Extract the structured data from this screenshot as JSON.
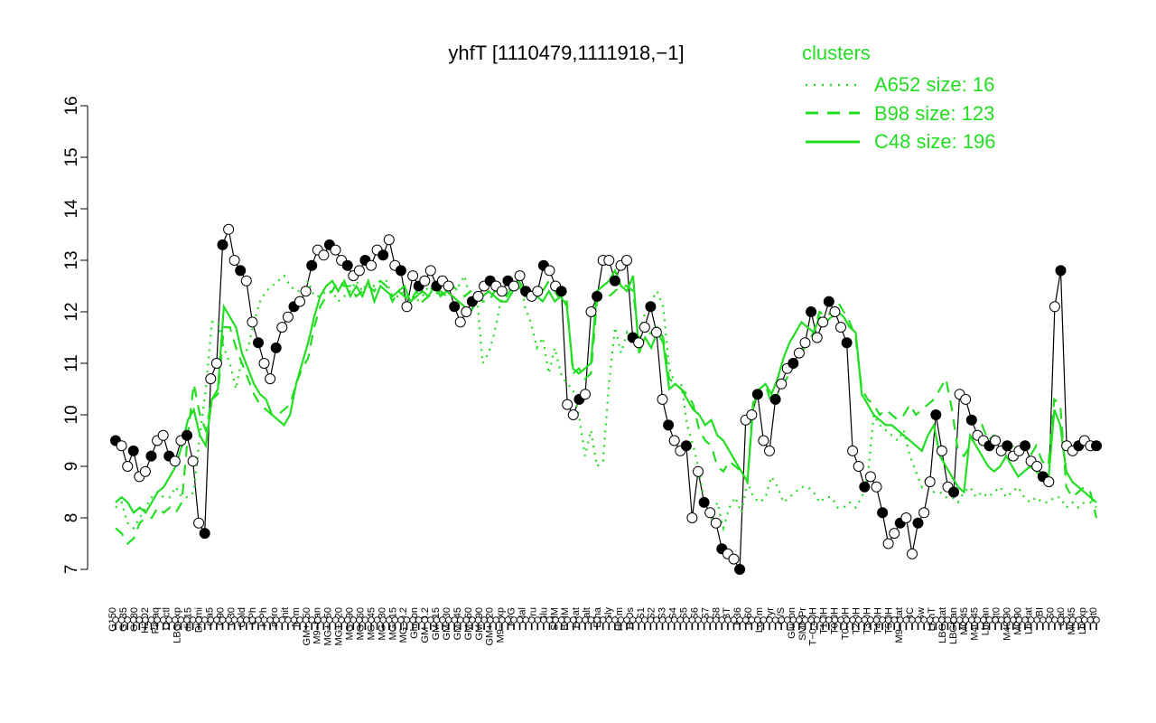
{
  "chart_data": {
    "type": "line",
    "title": "yhfT [1110479,1111918,−1]",
    "xlabel": "",
    "ylabel": "",
    "ylim": [
      7,
      16
    ],
    "yticks": [
      7,
      8,
      9,
      10,
      11,
      12,
      13,
      14,
      15,
      16
    ],
    "x_tick_labels": [
      "G150",
      "G135",
      "G180",
      "H2O2",
      "Paraq",
      "Oxctl",
      "LBGexp",
      "dia15",
      "Diami",
      "dia5",
      "C90",
      "C30",
      "Cold",
      "LPh",
      "HPh",
      "aero",
      "nit",
      "ferm",
      "GM+150",
      "M9−tran",
      "MG+150",
      "MG+120",
      "MG+90",
      "MG+60",
      "MG+45",
      "MG+30",
      "MG+15",
      "MG−0.2",
      "Glucon",
      "GM−0.2",
      "GM+15",
      "GM+30",
      "GM+45",
      "GM+60",
      "GM+90",
      "GM+120",
      "M9−exp",
      "M/G",
      "Mal",
      "Fru",
      "Glu",
      "SMM",
      "BMM",
      "Heat",
      "Salt",
      "Etha",
      "Gly",
      "HiTm",
      "HiOs",
      "S1",
      "S2",
      "S3",
      "S4",
      "S5",
      "S6",
      "S7",
      "S8",
      "BT",
      "B36",
      "B60",
      "LoTm",
      "Pyr",
      "G/S",
      "Glucon",
      "SMMPr",
      "T−0.40H",
      "T1.0H",
      "T0.0H",
      "T0.30H",
      "T2.0H",
      "T3.0H",
      "T4.0H",
      "T5.0H",
      "M9−stat",
      "BC",
      "Sw",
      "LPhT",
      "LBGstat",
      "LBGtran",
      "M0t45",
      "M40t45",
      "Lbtran",
      "Mt0",
      "M40t90",
      "M0t90",
      "Lbstat",
      "BI",
      "S0",
      "dia0",
      "M0t45",
      "Lbexp",
      "Mt0"
    ],
    "legend": {
      "title": "clusters",
      "placement": "top-right",
      "entries": [
        {
          "label": "A652 size: 16",
          "style": "dotted"
        },
        {
          "label": "B98 size: 123",
          "style": "dashed"
        },
        {
          "label": "C48 size: 196",
          "style": "solid"
        }
      ]
    },
    "series": [
      {
        "name": "yhfT",
        "style": "points+line",
        "color": "#000000",
        "values": [
          9.5,
          9.4,
          9.0,
          9.3,
          8.8,
          8.9,
          9.2,
          9.5,
          9.6,
          9.2,
          9.1,
          9.5,
          9.6,
          9.1,
          7.9,
          7.7,
          10.7,
          11.0,
          13.3,
          13.6,
          13.0,
          12.8,
          12.6,
          11.8,
          11.4,
          11.0,
          10.7,
          11.3,
          11.7,
          11.9,
          12.1,
          12.2,
          12.4,
          12.9,
          13.2,
          13.1,
          13.3,
          13.2,
          13.0,
          12.9,
          12.7,
          12.8,
          13.0,
          12.9,
          13.2,
          13.1,
          13.4,
          12.9,
          12.8,
          12.1,
          12.7,
          12.5,
          12.6,
          12.8,
          12.5,
          12.6,
          12.5,
          12.1,
          11.8,
          12.0,
          12.2,
          12.3,
          12.5,
          12.6,
          12.5,
          12.4,
          12.6,
          12.5,
          12.7,
          12.4,
          12.3,
          12.4,
          12.9,
          12.8,
          12.5,
          12.4,
          10.2,
          10.0,
          10.3,
          10.4,
          12.0,
          12.3,
          13.0,
          13.0,
          12.6,
          12.9,
          13.0,
          11.5,
          11.4,
          11.7,
          12.1,
          11.6,
          10.3,
          9.8,
          9.5,
          9.3,
          9.4,
          8.0,
          8.9,
          8.3,
          8.1,
          7.9,
          7.4,
          7.3,
          7.2,
          7.0,
          9.9,
          10.0,
          10.4,
          9.5,
          9.3,
          10.3,
          10.6,
          10.9,
          11.0,
          11.2,
          11.4,
          12.0,
          11.5,
          11.8,
          12.2,
          12.0,
          11.7,
          11.4,
          9.3,
          9.0,
          8.6,
          8.8,
          8.6,
          8.1,
          7.5,
          7.7,
          7.9,
          8.0,
          7.3,
          7.9,
          8.1,
          8.7,
          10.0,
          9.3,
          8.6,
          8.5,
          10.4,
          10.3,
          9.9,
          9.6,
          9.5,
          9.4,
          9.5,
          9.3,
          9.4,
          9.2,
          9.3,
          9.4,
          9.1,
          9.0,
          8.8,
          8.7,
          12.1,
          12.8,
          9.4,
          9.3,
          9.4,
          9.5,
          9.4,
          9.4
        ]
      },
      {
        "name": "A652",
        "style": "dotted",
        "color": "#22dd22",
        "values": [
          8.2,
          8.3,
          7.9,
          7.8,
          8.0,
          8.2,
          8.4,
          8.5,
          8.4,
          8.4,
          8.6,
          8.4,
          8.4,
          8.5,
          9.6,
          10.5,
          11.8,
          11.8,
          11.3,
          11.0,
          10.5,
          11.1,
          11.3,
          11.8,
          12.2,
          12.4,
          12.5,
          12.6,
          12.7,
          12.5,
          12.4,
          12.4,
          12.6,
          12.3,
          12.3,
          12.4,
          12.4,
          12.2,
          12.3,
          12.4,
          12.6,
          12.4,
          12.6,
          12.5,
          12.6,
          12.6,
          12.3,
          12.3,
          12.4,
          12.2,
          12.2,
          12.3,
          12.5,
          12.4,
          12.3,
          12.6,
          12.5,
          12.5,
          12.7,
          12.2,
          12.4,
          11.0,
          11.2,
          11.6,
          12.2,
          12.3,
          12.6,
          12.8,
          12.1,
          11.8,
          11.3,
          11.5,
          10.8,
          11.3,
          10.8,
          10.6,
          10.5,
          10.0,
          9.2,
          9.7,
          9.0,
          9.1,
          10.6,
          11.7,
          11.2,
          11.6,
          11.4,
          11.5,
          12.0,
          12.2,
          12.4,
          12.1,
          10.9,
          10.6,
          10.6,
          9.8,
          9.4,
          8.9,
          8.2,
          8.0,
          8.3,
          7.8,
          8.2,
          8.4,
          8.1,
          8.7,
          8.4,
          8.3,
          8.4,
          8.8,
          8.6,
          8.3,
          8.4,
          8.5,
          8.6,
          8.6,
          8.5,
          8.3,
          8.4,
          8.4,
          8.2,
          8.2,
          8.3,
          8.2,
          8.4,
          8.8,
          10.0,
          9.8,
          9.7,
          9.6,
          9.5,
          9.7,
          9.2,
          8.9,
          8.6,
          8.8,
          8.5,
          8.5,
          8.4,
          8.4,
          8.3,
          8.5,
          8.6,
          8.4,
          8.5,
          8.4,
          8.5,
          8.6,
          8.4,
          8.5,
          8.6,
          8.4,
          8.3,
          8.4,
          8.3,
          8.3,
          8.4,
          8.4,
          8.2,
          8.3,
          8.2,
          8.3,
          8.3,
          8.2
        ]
      },
      {
        "name": "B98",
        "style": "dashed",
        "color": "#22dd22",
        "values": [
          7.8,
          7.7,
          7.5,
          7.6,
          7.9,
          8.0,
          8.0,
          8.2,
          8.1,
          8.2,
          8.1,
          8.3,
          9.6,
          10.6,
          10.0,
          9.7,
          10.3,
          10.4,
          11.7,
          11.7,
          11.3,
          11.0,
          10.7,
          10.4,
          10.2,
          10.1,
          10.0,
          10.0,
          10.1,
          10.2,
          10.6,
          10.9,
          11.1,
          11.7,
          12.1,
          12.3,
          12.4,
          12.6,
          12.5,
          12.5,
          12.3,
          12.4,
          12.5,
          12.4,
          12.6,
          12.5,
          12.2,
          12.4,
          12.3,
          12.2,
          12.4,
          12.2,
          12.3,
          12.4,
          12.4,
          12.3,
          12.5,
          12.4,
          12.3,
          12.4,
          12.4,
          12.2,
          12.2,
          12.4,
          12.4,
          12.3,
          12.5,
          12.6,
          12.4,
          12.3,
          12.4,
          12.4,
          12.6,
          12.4,
          12.2,
          12.2,
          10.8,
          10.9,
          10.7,
          10.8,
          12.2,
          12.3,
          12.3,
          12.4,
          12.5,
          12.5,
          12.4,
          11.4,
          11.5,
          11.6,
          11.7,
          11.5,
          10.7,
          10.6,
          10.5,
          10.4,
          10.2,
          9.7,
          9.5,
          9.4,
          9.0,
          8.9,
          9.1,
          9.0,
          8.9,
          8.7,
          10.3,
          10.5,
          10.6,
          10.2,
          10.4,
          10.6,
          10.8,
          11.0,
          11.2,
          11.4,
          11.6,
          12.0,
          11.9,
          12.0,
          12.2,
          12.0,
          11.8,
          11.5,
          10.5,
          10.3,
          10.2,
          10.0,
          10.1,
          10.0,
          9.9,
          10.0,
          10.2,
          10.0,
          10.1,
          10.2,
          10.3,
          10.5,
          10.7,
          10.1,
          9.3,
          9.2,
          9.4,
          9.7,
          9.8,
          9.5,
          9.6,
          9.5,
          9.4,
          9.4,
          9.3,
          9.4,
          9.2,
          9.4,
          9.1,
          9.0,
          10.3,
          10.2,
          8.6,
          8.4,
          8.5,
          8.6,
          8.5,
          8.0
        ]
      },
      {
        "name": "C48",
        "style": "solid",
        "color": "#22dd22",
        "values": [
          8.3,
          8.4,
          8.3,
          8.1,
          8.2,
          8.1,
          8.3,
          8.5,
          8.6,
          8.8,
          9.0,
          9.4,
          9.9,
          10.1,
          9.6,
          9.4,
          10.3,
          10.5,
          12.1,
          11.9,
          11.7,
          11.2,
          10.9,
          10.6,
          10.4,
          10.3,
          10.0,
          9.9,
          9.8,
          10.0,
          10.6,
          11.0,
          11.4,
          11.9,
          12.3,
          12.5,
          12.6,
          12.4,
          12.6,
          12.3,
          12.5,
          12.3,
          12.6,
          12.2,
          12.5,
          12.4,
          12.3,
          12.4,
          12.5,
          12.2,
          12.3,
          12.4,
          12.3,
          12.5,
          12.3,
          12.4,
          12.3,
          12.2,
          12.1,
          12.0,
          12.2,
          12.3,
          12.4,
          12.3,
          12.2,
          12.2,
          12.4,
          12.5,
          12.3,
          12.4,
          12.3,
          12.2,
          12.4,
          12.2,
          12.3,
          12.1,
          10.9,
          10.8,
          10.9,
          11.0,
          12.4,
          12.5,
          12.6,
          12.8,
          12.5,
          12.4,
          12.7,
          11.2,
          11.5,
          11.3,
          11.6,
          11.4,
          10.5,
          10.6,
          10.5,
          10.3,
          10.1,
          10.0,
          9.8,
          9.9,
          9.6,
          9.5,
          9.3,
          9.1,
          8.9,
          8.7,
          10.2,
          10.5,
          10.6,
          10.4,
          10.7,
          11.1,
          11.4,
          11.6,
          11.8,
          11.7,
          11.6,
          11.9,
          11.8,
          11.9,
          12.0,
          11.9,
          11.7,
          11.6,
          10.4,
          10.2,
          10.0,
          9.9,
          9.8,
          9.8,
          9.7,
          9.6,
          9.5,
          9.4,
          9.3,
          9.6,
          9.8,
          9.2,
          9.0,
          8.8,
          8.6,
          8.5,
          9.6,
          9.4,
          9.2,
          9.0,
          8.9,
          9.0,
          9.2,
          9.0,
          8.8,
          8.9,
          9.0,
          8.9,
          8.8,
          8.7,
          10.1,
          9.8,
          8.9,
          8.7,
          8.6,
          8.5,
          8.4,
          8.3
        ]
      }
    ]
  }
}
